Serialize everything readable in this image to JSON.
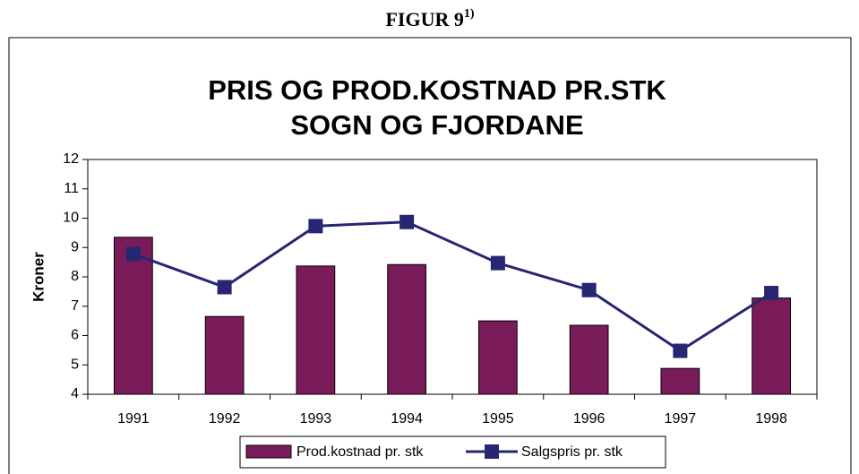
{
  "chart_data": {
    "type": "bar_line",
    "figure_label": "FIGUR 9",
    "figure_note": "1)",
    "title": [
      "PRIS OG PROD.KOSTNAD PR.STK",
      "SOGN OG FJORDANE"
    ],
    "y_label": "Kroner",
    "categories": [
      "1991",
      "1992",
      "1993",
      "1994",
      "1995",
      "1996",
      "1997",
      "1998"
    ],
    "series": [
      {
        "name": "Prod.kostnad pr. stk",
        "type": "bar",
        "color": "#7b1c5a",
        "values": [
          9.35,
          6.65,
          8.37,
          8.42,
          6.5,
          6.35,
          4.88,
          7.28
        ]
      },
      {
        "name": "Salgspris pr. stk",
        "type": "line",
        "color": "#262673",
        "values": [
          8.78,
          7.65,
          9.73,
          9.87,
          8.47,
          7.55,
          5.48,
          7.45
        ]
      }
    ],
    "ylim": [
      4,
      12
    ],
    "yticks": [
      4,
      5,
      6,
      7,
      8,
      9,
      10,
      11,
      12
    ],
    "grid": false,
    "legend": "bottom"
  }
}
